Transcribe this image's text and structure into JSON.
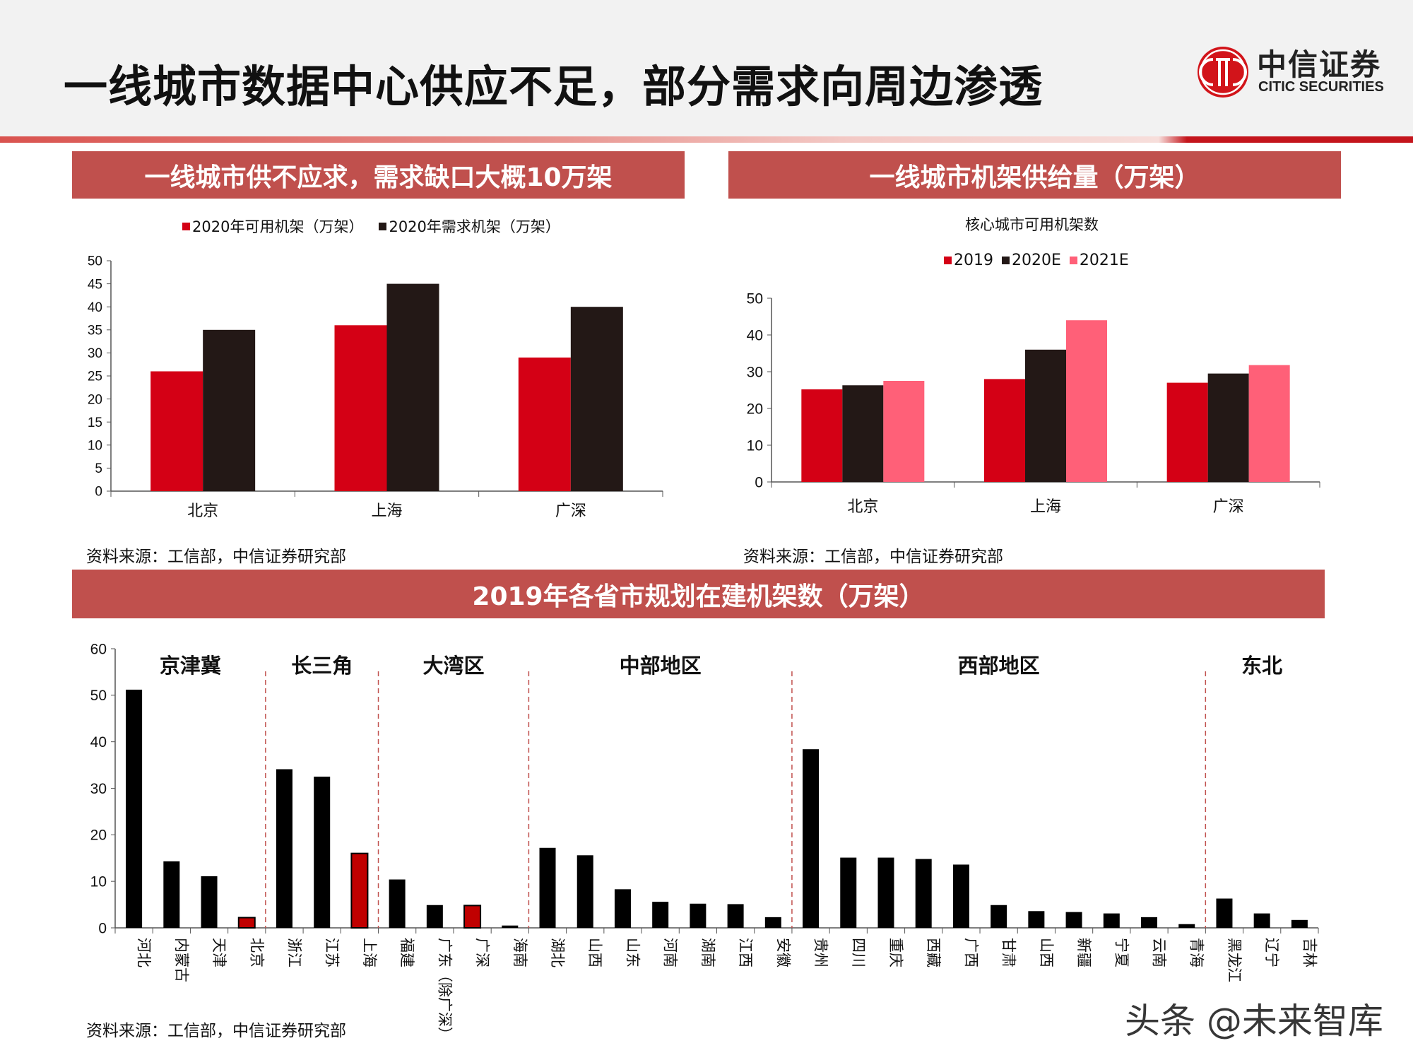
{
  "header": {
    "title": "一线城市数据中心供应不足，部分需求向周边渗透",
    "logo_cn": "中信证券",
    "logo_en": "CITIC SECURITIES"
  },
  "colors": {
    "band": "#c0504d",
    "red": "#d40015",
    "dark": "#231816",
    "pink": "#ff6078",
    "bar_black": "#000000",
    "bar_highlight": "#c00000"
  },
  "panels": {
    "left": {
      "title": "一线城市供不应求，需求缺口大概10万架",
      "source": "资料来源：工信部，中信证券研究部"
    },
    "right": {
      "title": "一线城市机架供给量（万架）",
      "source": "资料来源：工信部，中信证券研究部"
    },
    "bottom": {
      "title": "2019年各省市规划在建机架数（万架）",
      "source": "资料来源：工信部，中信证券研究部"
    }
  },
  "watermark": "头条 @未来智库",
  "chart_data": [
    {
      "type": "bar",
      "title": "",
      "categories": [
        "北京",
        "上海",
        "广深"
      ],
      "series": [
        {
          "name": "2020年可用机架（万架）",
          "values": [
            26,
            36,
            29
          ],
          "color": "#d40015"
        },
        {
          "name": "2020年需求机架（万架）",
          "values": [
            35,
            45,
            40
          ],
          "color": "#231816"
        }
      ],
      "yticks": [
        "0",
        "5",
        "10",
        "15",
        "20",
        "25",
        "30",
        "35",
        "40",
        "45",
        "50"
      ],
      "ylim": [
        0,
        50
      ],
      "legend": "top",
      "grid": false
    },
    {
      "type": "bar",
      "title": "核心城市可用机架数",
      "categories": [
        "北京",
        "上海",
        "广深"
      ],
      "series": [
        {
          "name": "2019",
          "values": [
            25.2,
            28,
            27
          ],
          "color": "#d40015"
        },
        {
          "name": "2020E",
          "values": [
            26.3,
            36,
            29.5
          ],
          "color": "#231816"
        },
        {
          "name": "2021E",
          "values": [
            27.5,
            44,
            31.8
          ],
          "color": "#ff6078"
        }
      ],
      "yticks": [
        "0",
        "10",
        "20",
        "30",
        "40",
        "50"
      ],
      "ylim": [
        0,
        50
      ],
      "legend": "top",
      "grid": false
    },
    {
      "type": "bar",
      "title": "",
      "categories": [
        "河北",
        "内蒙古",
        "天津",
        "北京",
        "浙江",
        "江苏",
        "上海",
        "福建",
        "广东（除广深）",
        "广深",
        "海南",
        "湖北",
        "山西",
        "山东",
        "河南",
        "湖南",
        "江西",
        "安徽",
        "贵州",
        "四川",
        "重庆",
        "西藏",
        "广西",
        "甘肃",
        "山西",
        "新疆",
        "宁夏",
        "云南",
        "青海",
        "黑龙江",
        "辽宁",
        "吉林"
      ],
      "values": [
        51.2,
        14.3,
        11.1,
        2.2,
        34.1,
        32.5,
        16,
        10.4,
        4.9,
        4.8,
        0.5,
        17.2,
        15.6,
        8.3,
        5.6,
        5.2,
        5.1,
        2.3,
        38.4,
        15.1,
        15.1,
        14.8,
        13.6,
        4.9,
        3.6,
        3.4,
        3.1,
        2.3,
        0.8,
        6.3,
        3.1,
        1.7
      ],
      "highlighted": [
        "北京",
        "上海",
        "广深"
      ],
      "groups": [
        {
          "label": "京津冀",
          "start": 0,
          "end": 3
        },
        {
          "label": "长三角",
          "start": 4,
          "end": 6
        },
        {
          "label": "大湾区",
          "start": 7,
          "end": 10
        },
        {
          "label": "中部地区",
          "start": 11,
          "end": 17
        },
        {
          "label": "西部地区",
          "start": 18,
          "end": 28
        },
        {
          "label": "东北",
          "start": 29,
          "end": 31
        }
      ],
      "yticks": [
        "0",
        "10",
        "20",
        "30",
        "40",
        "50",
        "60"
      ],
      "ylim": [
        0,
        60
      ],
      "legend": "none",
      "grid": false
    }
  ]
}
